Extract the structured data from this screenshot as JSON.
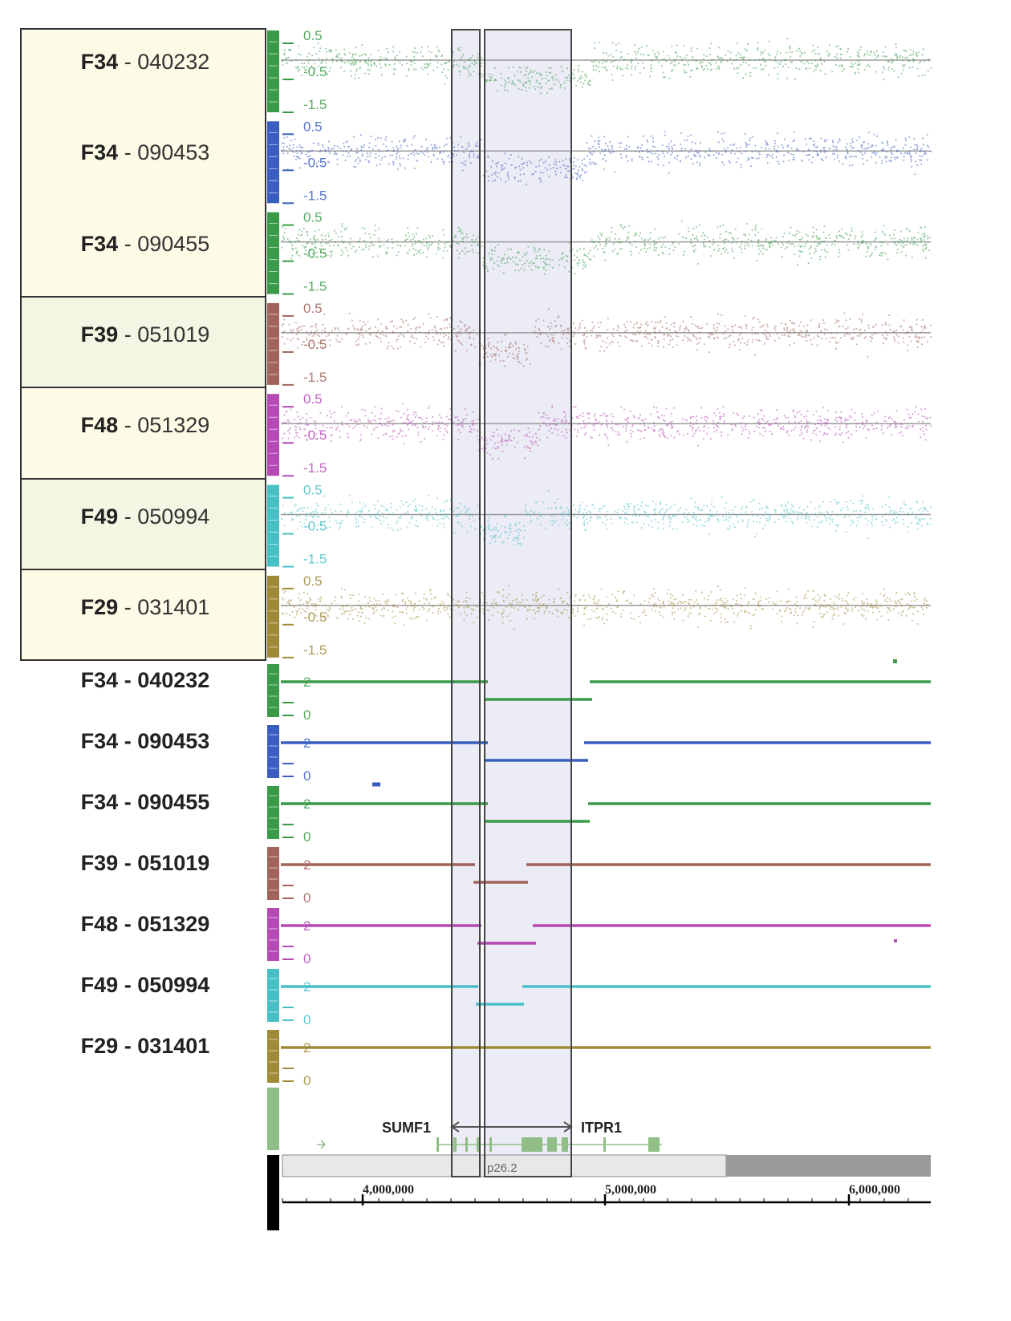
{
  "colors": {
    "green": "#3a9a48",
    "blue": "#3a5ec0",
    "brown": "#a0645a",
    "magenta": "#b54ab5",
    "cyan": "#48bfc6",
    "olive": "#a08a38",
    "panel_cream": "#fdfbe6",
    "panel_green": "#f3f6e2",
    "highlight": "#e6e6f3"
  },
  "scatter_tracks": [
    {
      "family": "F34",
      "id": "040232",
      "color": "green",
      "ticks": [
        "0.5",
        "-0.5",
        "-1.5"
      ]
    },
    {
      "family": "F34",
      "id": "090453",
      "color": "blue",
      "ticks": [
        "0.5",
        "-0.5",
        "-1.5"
      ]
    },
    {
      "family": "F34",
      "id": "090455",
      "color": "green",
      "ticks": [
        "0.5",
        "-0.5",
        "-1.5"
      ]
    },
    {
      "family": "F39",
      "id": "051019",
      "color": "brown",
      "ticks": [
        "0.5",
        "-0.5",
        "-1.5"
      ]
    },
    {
      "family": "F48",
      "id": "051329",
      "color": "magenta",
      "ticks": [
        "0.5",
        "-0.5",
        "-1.5"
      ]
    },
    {
      "family": "F49",
      "id": "050994",
      "color": "cyan",
      "ticks": [
        "0.5",
        "-0.5",
        "-1.5"
      ]
    },
    {
      "family": "F29",
      "id": "031401",
      "color": "olive",
      "ticks": [
        "0.5",
        "-0.5",
        "-1.5"
      ]
    }
  ],
  "segment_tracks": [
    {
      "family": "F34",
      "id": "040232",
      "color": "green",
      "ticks": [
        "2",
        "0"
      ]
    },
    {
      "family": "F34",
      "id": "090453",
      "color": "blue",
      "ticks": [
        "2",
        "0"
      ]
    },
    {
      "family": "F34",
      "id": "090455",
      "color": "green",
      "ticks": [
        "2",
        "0"
      ]
    },
    {
      "family": "F39",
      "id": "051019",
      "color": "brown",
      "ticks": [
        "2",
        "0"
      ]
    },
    {
      "family": "F48",
      "id": "051329",
      "color": "magenta",
      "ticks": [
        "2",
        "0"
      ]
    },
    {
      "family": "F49",
      "id": "050994",
      "color": "cyan",
      "ticks": [
        "2",
        "0"
      ]
    },
    {
      "family": "F29",
      "id": "031401",
      "color": "olive",
      "ticks": [
        "2",
        "0"
      ]
    }
  ],
  "label_separator": " - ",
  "genes": {
    "left": "SUMF1",
    "right": "ITPR1"
  },
  "cytoband": "p26.2",
  "axis": {
    "ticks": [
      "4,000,000",
      "5,000,000",
      "6,000,000"
    ]
  }
}
